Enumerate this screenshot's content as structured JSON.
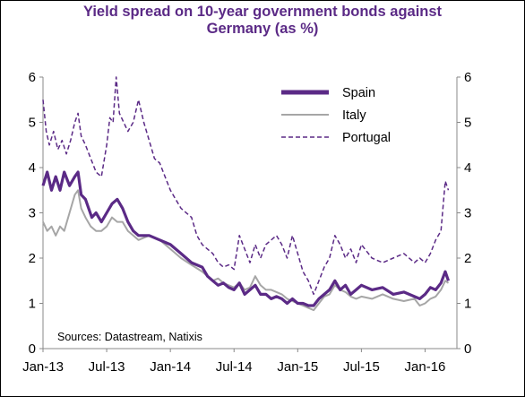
{
  "chart_data": {
    "type": "line",
    "title_line1": "Yield spread on 10-year government bonds against",
    "title_line2": "Germany (as %)",
    "x_ticks": [
      "Jan-13",
      "Jul-13",
      "Jan-14",
      "Jul-14",
      "Jan-15",
      "Jul-15",
      "Jan-16"
    ],
    "y_ticks": [
      0,
      1,
      2,
      3,
      4,
      5,
      6
    ],
    "ylim": [
      0,
      6
    ],
    "xlim_months": [
      0,
      39
    ],
    "grid": false,
    "legend_position": "top-right",
    "source_note": "Sources: Datastream, Natixis",
    "series": [
      {
        "name": "Spain",
        "color": "#5b2a86",
        "style": "solid-thick",
        "points": [
          [
            0,
            3.6
          ],
          [
            0.4,
            3.9
          ],
          [
            0.8,
            3.5
          ],
          [
            1.2,
            3.8
          ],
          [
            1.6,
            3.5
          ],
          [
            2,
            3.9
          ],
          [
            2.5,
            3.6
          ],
          [
            3,
            3.8
          ],
          [
            3.3,
            3.9
          ],
          [
            3.6,
            3.4
          ],
          [
            4,
            3.3
          ],
          [
            4.3,
            3.1
          ],
          [
            4.6,
            2.9
          ],
          [
            5,
            3.0
          ],
          [
            5.5,
            2.8
          ],
          [
            6,
            3.0
          ],
          [
            6.5,
            3.2
          ],
          [
            7,
            3.3
          ],
          [
            7.5,
            3.1
          ],
          [
            8,
            2.8
          ],
          [
            8.5,
            2.6
          ],
          [
            9,
            2.5
          ],
          [
            10,
            2.5
          ],
          [
            11,
            2.4
          ],
          [
            12,
            2.3
          ],
          [
            12.5,
            2.2
          ],
          [
            13,
            2.1
          ],
          [
            14,
            1.9
          ],
          [
            15,
            1.8
          ],
          [
            15.5,
            1.6
          ],
          [
            16,
            1.5
          ],
          [
            16.5,
            1.4
          ],
          [
            17,
            1.45
          ],
          [
            17.5,
            1.35
          ],
          [
            18,
            1.3
          ],
          [
            18.5,
            1.45
          ],
          [
            19,
            1.2
          ],
          [
            19.5,
            1.3
          ],
          [
            20,
            1.4
          ],
          [
            20.5,
            1.2
          ],
          [
            21,
            1.2
          ],
          [
            21.5,
            1.1
          ],
          [
            22,
            1.15
          ],
          [
            22.5,
            1.1
          ],
          [
            23,
            1.0
          ],
          [
            23.5,
            1.1
          ],
          [
            24,
            1.0
          ],
          [
            24.5,
            1.0
          ],
          [
            25,
            0.95
          ],
          [
            25.5,
            0.95
          ],
          [
            26,
            1.1
          ],
          [
            26.5,
            1.2
          ],
          [
            27,
            1.3
          ],
          [
            27.5,
            1.5
          ],
          [
            28,
            1.3
          ],
          [
            28.5,
            1.4
          ],
          [
            29,
            1.2
          ],
          [
            29.5,
            1.3
          ],
          [
            30,
            1.4
          ],
          [
            31,
            1.3
          ],
          [
            32,
            1.35
          ],
          [
            33,
            1.2
          ],
          [
            34,
            1.25
          ],
          [
            35,
            1.15
          ],
          [
            35.5,
            1.1
          ],
          [
            36,
            1.2
          ],
          [
            36.5,
            1.35
          ],
          [
            37,
            1.3
          ],
          [
            37.5,
            1.45
          ],
          [
            37.9,
            1.7
          ],
          [
            38.2,
            1.5
          ]
        ]
      },
      {
        "name": "Italy",
        "color": "#a6a6a6",
        "style": "solid",
        "points": [
          [
            0,
            2.8
          ],
          [
            0.4,
            2.6
          ],
          [
            0.8,
            2.7
          ],
          [
            1.2,
            2.5
          ],
          [
            1.6,
            2.7
          ],
          [
            2,
            2.6
          ],
          [
            2.5,
            3.0
          ],
          [
            3,
            3.4
          ],
          [
            3.3,
            3.5
          ],
          [
            3.6,
            3.1
          ],
          [
            4,
            2.9
          ],
          [
            4.5,
            2.7
          ],
          [
            5,
            2.6
          ],
          [
            5.5,
            2.6
          ],
          [
            6,
            2.7
          ],
          [
            6.5,
            2.9
          ],
          [
            7,
            2.8
          ],
          [
            7.5,
            2.8
          ],
          [
            8,
            2.6
          ],
          [
            8.5,
            2.5
          ],
          [
            9,
            2.4
          ],
          [
            10,
            2.5
          ],
          [
            11,
            2.4
          ],
          [
            12,
            2.2
          ],
          [
            12.5,
            2.1
          ],
          [
            13,
            2.0
          ],
          [
            14,
            1.85
          ],
          [
            15,
            1.7
          ],
          [
            15.5,
            1.6
          ],
          [
            16,
            1.5
          ],
          [
            16.5,
            1.55
          ],
          [
            17,
            1.45
          ],
          [
            17.5,
            1.4
          ],
          [
            18,
            1.35
          ],
          [
            18.5,
            1.45
          ],
          [
            19,
            1.3
          ],
          [
            19.5,
            1.35
          ],
          [
            20,
            1.6
          ],
          [
            20.5,
            1.4
          ],
          [
            21,
            1.3
          ],
          [
            21.5,
            1.3
          ],
          [
            22,
            1.25
          ],
          [
            22.5,
            1.2
          ],
          [
            23,
            1.1
          ],
          [
            23.5,
            1.05
          ],
          [
            24,
            1.0
          ],
          [
            24.5,
            0.95
          ],
          [
            25,
            0.9
          ],
          [
            25.5,
            0.85
          ],
          [
            26,
            1.0
          ],
          [
            26.5,
            1.15
          ],
          [
            27,
            1.2
          ],
          [
            27.5,
            1.4
          ],
          [
            28,
            1.3
          ],
          [
            28.5,
            1.25
          ],
          [
            29,
            1.15
          ],
          [
            29.5,
            1.1
          ],
          [
            30,
            1.15
          ],
          [
            31,
            1.1
          ],
          [
            32,
            1.2
          ],
          [
            33,
            1.1
          ],
          [
            34,
            1.05
          ],
          [
            35,
            1.1
          ],
          [
            35.5,
            0.95
          ],
          [
            36,
            1.0
          ],
          [
            36.5,
            1.1
          ],
          [
            37,
            1.15
          ],
          [
            37.5,
            1.3
          ],
          [
            37.9,
            1.5
          ],
          [
            38.2,
            1.45
          ]
        ]
      },
      {
        "name": "Portugal",
        "color": "#5b2a86",
        "style": "dashed",
        "points": [
          [
            0,
            5.5
          ],
          [
            0.3,
            4.8
          ],
          [
            0.6,
            4.5
          ],
          [
            1,
            4.8
          ],
          [
            1.4,
            4.4
          ],
          [
            1.8,
            4.6
          ],
          [
            2.2,
            4.3
          ],
          [
            2.6,
            4.6
          ],
          [
            3,
            5.0
          ],
          [
            3.3,
            5.2
          ],
          [
            3.6,
            4.7
          ],
          [
            4,
            4.5
          ],
          [
            4.5,
            4.2
          ],
          [
            5,
            3.9
          ],
          [
            5.5,
            3.8
          ],
          [
            6,
            4.5
          ],
          [
            6.3,
            5.1
          ],
          [
            6.6,
            5.0
          ],
          [
            6.9,
            6.0
          ],
          [
            7.2,
            5.2
          ],
          [
            7.6,
            5.0
          ],
          [
            8,
            4.8
          ],
          [
            8.5,
            5.0
          ],
          [
            9,
            5.5
          ],
          [
            9.5,
            5.0
          ],
          [
            10,
            4.6
          ],
          [
            10.5,
            4.2
          ],
          [
            11,
            4.1
          ],
          [
            11.5,
            3.8
          ],
          [
            12,
            3.5
          ],
          [
            12.5,
            3.3
          ],
          [
            13,
            3.1
          ],
          [
            14,
            2.9
          ],
          [
            14.5,
            2.5
          ],
          [
            15,
            2.3
          ],
          [
            15.5,
            2.2
          ],
          [
            16,
            2.1
          ],
          [
            16.5,
            1.9
          ],
          [
            17,
            1.8
          ],
          [
            17.5,
            1.85
          ],
          [
            18,
            1.75
          ],
          [
            18.5,
            2.5
          ],
          [
            19,
            2.2
          ],
          [
            19.5,
            1.9
          ],
          [
            20,
            2.3
          ],
          [
            20.5,
            2.0
          ],
          [
            21,
            2.3
          ],
          [
            21.5,
            2.4
          ],
          [
            22,
            2.5
          ],
          [
            22.5,
            2.3
          ],
          [
            23,
            2.0
          ],
          [
            23.5,
            2.5
          ],
          [
            24,
            2.1
          ],
          [
            24.5,
            1.7
          ],
          [
            25,
            1.5
          ],
          [
            25.5,
            1.2
          ],
          [
            26,
            1.5
          ],
          [
            26.5,
            1.8
          ],
          [
            27,
            2.0
          ],
          [
            27.5,
            2.5
          ],
          [
            28,
            2.3
          ],
          [
            28.5,
            2.0
          ],
          [
            29,
            2.2
          ],
          [
            29.5,
            1.9
          ],
          [
            30,
            2.3
          ],
          [
            31,
            2.0
          ],
          [
            32,
            1.9
          ],
          [
            33,
            2.0
          ],
          [
            34,
            2.1
          ],
          [
            35,
            1.9
          ],
          [
            35.5,
            2.0
          ],
          [
            36,
            1.9
          ],
          [
            36.5,
            2.1
          ],
          [
            37,
            2.4
          ],
          [
            37.5,
            2.6
          ],
          [
            37.9,
            3.7
          ],
          [
            38.2,
            3.5
          ]
        ]
      }
    ]
  }
}
